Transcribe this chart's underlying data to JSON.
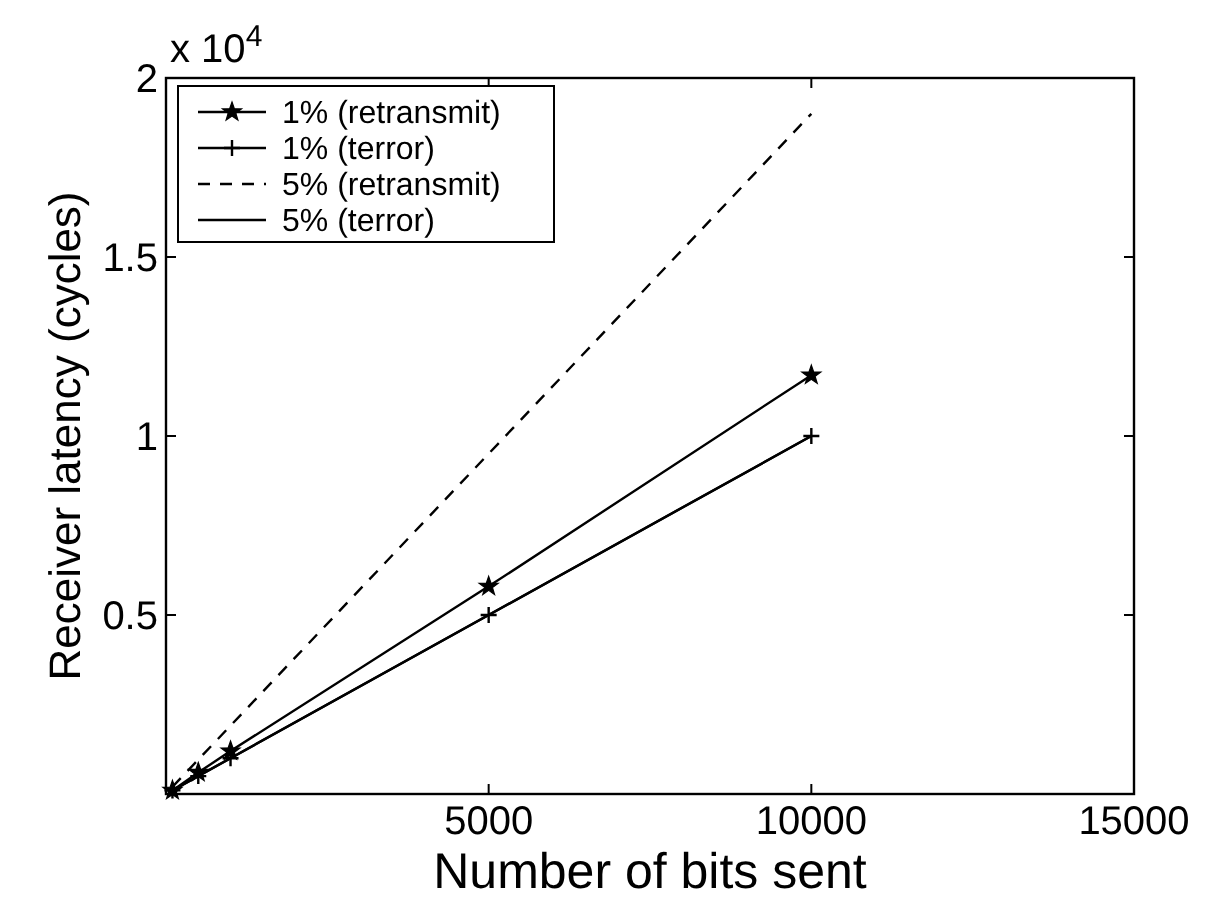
{
  "chart_data": {
    "type": "line",
    "xlabel": "Number of bits sent",
    "ylabel": "Receiver latency (cycles)",
    "annotations": [
      "x 10$^{4}$"
    ],
    "xlim": [
      0,
      15000
    ],
    "ylim": [
      0,
      2
    ],
    "xticks": [
      5000,
      10000,
      15000
    ],
    "yticks": [
      0.5,
      1,
      1.5,
      2
    ],
    "grid": false,
    "legend": "top left",
    "series": [
      {
        "name": "1% (retransmit)",
        "color": "#000000",
        "marker": "star",
        "line_style": "solid",
        "x": [
          100,
          500,
          1000,
          5000,
          10000
        ],
        "values": [
          0.01,
          0.06,
          0.12,
          0.58,
          1.17
        ]
      },
      {
        "name": "1% (terror)",
        "color": "#000000",
        "marker": "cross",
        "line_style": "solid",
        "x": [
          100,
          500,
          1000,
          5000,
          10000
        ],
        "values": [
          0.01,
          0.05,
          0.1,
          0.5,
          1
        ]
      },
      {
        "name": "5% (retransmit)",
        "color": "#000000",
        "marker": "none",
        "line_style": "dashed",
        "x": [
          100,
          10000
        ],
        "values": [
          0.02,
          1.9
        ]
      },
      {
        "name": "5% (terror)",
        "color": "#000000",
        "marker": "none",
        "line_style": "solid",
        "x": [
          100,
          10000
        ],
        "values": [
          0.01,
          1
        ]
      }
    ]
  }
}
